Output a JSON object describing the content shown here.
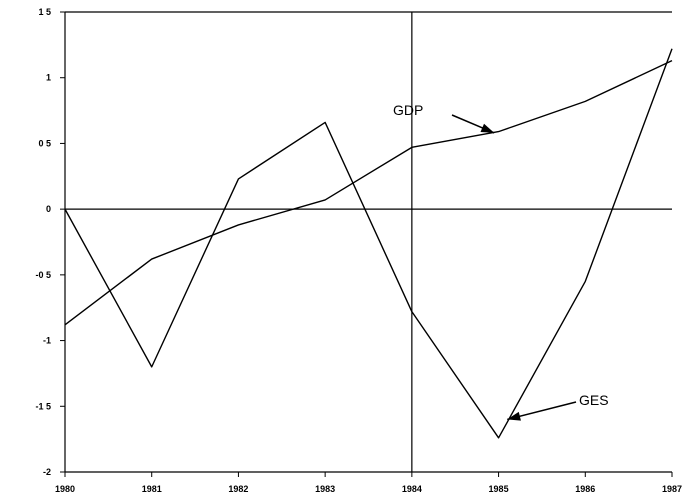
{
  "chart_data": {
    "type": "line",
    "title": "",
    "xlabel": "",
    "ylabel": "",
    "categories": [
      "1980",
      "1981",
      "1982",
      "1983",
      "1984",
      "1985",
      "1986",
      "1987"
    ],
    "x_tick_labels": [
      "1980",
      "1981",
      "1982",
      "1983",
      "1984",
      "1985",
      "1986",
      "1987"
    ],
    "y_tick_labels": [
      "1 5",
      "1",
      "0 5",
      "0",
      "-0 5",
      "-1",
      "-1 5",
      "-2"
    ],
    "y_ticks": [
      1.5,
      1,
      0.5,
      0,
      -0.5,
      -1,
      -1.5,
      -2
    ],
    "xlim": [
      1980,
      1987
    ],
    "ylim": [
      -2,
      1.5
    ],
    "grid": false,
    "legend": "none",
    "reference_lines": {
      "horizontal_y": 0,
      "vertical_x": 1984
    },
    "series": [
      {
        "name": "GDP",
        "x": [
          1980,
          1981,
          1982,
          1983,
          1984,
          1985,
          1986,
          1987
        ],
        "values": [
          -0.88,
          -0.38,
          -0.12,
          0.07,
          0.47,
          0.59,
          0.82,
          1.13
        ]
      },
      {
        "name": "GES",
        "x": [
          1980,
          1981,
          1982,
          1983,
          1984,
          1985,
          1986,
          1987
        ],
        "values": [
          0.0,
          -1.2,
          0.23,
          0.66,
          -0.78,
          -1.74,
          -0.55,
          1.22
        ]
      }
    ],
    "annotations": [
      {
        "text": "GDP",
        "series": "GDP",
        "arrow_to": [
          1984.95,
          0.58
        ]
      },
      {
        "text": "GES",
        "series": "GES",
        "arrow_to": [
          1985.1,
          -1.6
        ]
      }
    ]
  }
}
